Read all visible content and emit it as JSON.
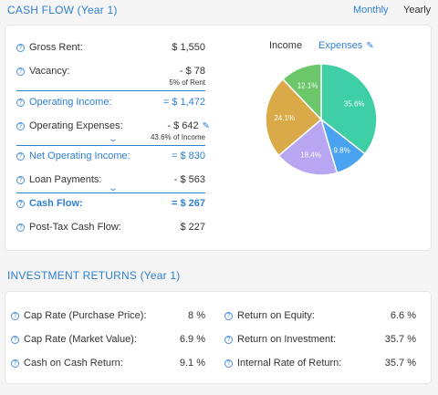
{
  "cashflow": {
    "title": "CASH FLOW  (Year 1)",
    "period_monthly": "Monthly",
    "period_yearly": "Yearly",
    "help_glyph": "?",
    "rows": [
      {
        "label": "Gross Rent:",
        "value": "$ 1,550"
      },
      {
        "label": "Vacancy:",
        "value": "-  $ 78",
        "note": "5% of Rent"
      },
      {
        "label": "Operating Income:",
        "value": "= $ 1,472"
      },
      {
        "label": "Operating Expenses:",
        "value": "-  $ 642",
        "note": "43.6% of Income"
      },
      {
        "label": "Net Operating Income:",
        "value": "= $ 830"
      },
      {
        "label": "Loan Payments:",
        "value": "-  $ 563"
      },
      {
        "label": "Cash Flow:",
        "value": "= $ 267"
      },
      {
        "label": "Post-Tax Cash Flow:",
        "value": "$ 227"
      }
    ],
    "chart_tabs": {
      "income": "Income",
      "expenses": "Expenses"
    }
  },
  "chart_data": {
    "type": "pie",
    "slices": [
      {
        "label": "35.6%",
        "value": 35.6,
        "color": "#3ecfa6"
      },
      {
        "label": "9.8%",
        "value": 9.8,
        "color": "#4aa3f0"
      },
      {
        "label": "18.4%",
        "value": 18.4,
        "color": "#b9a6f2"
      },
      {
        "label": "24.1%",
        "value": 24.1,
        "color": "#d9aa47"
      },
      {
        "label": "12.1%",
        "value": 12.1,
        "color": "#6cc76b"
      }
    ],
    "start_angle_deg": 0,
    "direction": "clockwise"
  },
  "investment": {
    "title": "INVESTMENT RETURNS  (Year 1)",
    "left": [
      {
        "label": "Cap Rate (Purchase Price):",
        "value": "8 %"
      },
      {
        "label": "Cap Rate (Market Value):",
        "value": "6.9 %"
      },
      {
        "label": "Cash on Cash Return:",
        "value": "9.1 %"
      }
    ],
    "right": [
      {
        "label": "Return on Equity:",
        "value": "6.6 %"
      },
      {
        "label": "Return on Investment:",
        "value": "35.7 %"
      },
      {
        "label": "Internal Rate of Return:",
        "value": "35.7 %"
      }
    ]
  }
}
